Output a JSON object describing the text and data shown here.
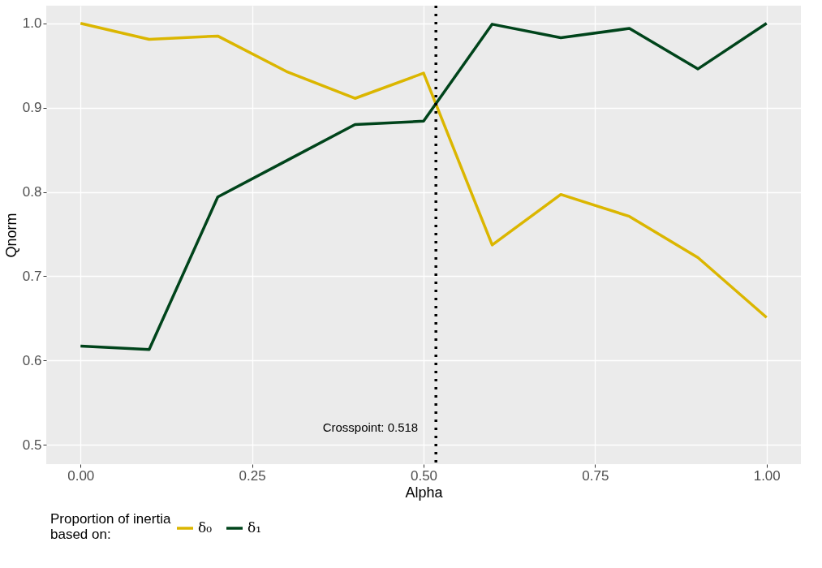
{
  "chart_data": {
    "type": "line",
    "xlabel": "Alpha",
    "ylabel": "Qnorm",
    "legend_title": "Proportion of inertia\nbased on:",
    "x": [
      0,
      0.1,
      0.2,
      0.3,
      0.4,
      0.5,
      0.6,
      0.7,
      0.8,
      0.9,
      1.0
    ],
    "series": [
      {
        "name": "δ₀",
        "color": "#dbb600",
        "values": [
          1.0,
          0.981,
          0.985,
          0.943,
          0.911,
          0.941,
          0.737,
          0.797,
          0.771,
          0.722,
          0.651
        ]
      },
      {
        "name": "δ₁",
        "color": "#00441b",
        "values": [
          0.617,
          0.613,
          0.794,
          0.837,
          0.88,
          0.884,
          0.999,
          0.983,
          0.994,
          0.946,
          1.0
        ]
      }
    ],
    "xlim": [
      -0.05,
      1.05
    ],
    "xticks": [
      {
        "value": 0,
        "label": "0.00"
      },
      0.25,
      {
        "value": 0.5,
        "label": "0.50"
      },
      0.75,
      {
        "value": 1,
        "label": "1.00"
      }
    ],
    "ylim": [
      0.477,
      1.021
    ],
    "yticks": [
      0.5,
      0.6,
      0.7,
      0.8,
      0.9,
      {
        "value": 1,
        "label": "1.0"
      }
    ],
    "ref_lines": [
      {
        "axis": "x",
        "value": 0.518,
        "label": "Crosspoint: 0.518",
        "color": "#000000",
        "line_style": "dotted"
      }
    ],
    "grid": true,
    "legend": "bottom",
    "line_style": "solid",
    "marker": "none"
  }
}
